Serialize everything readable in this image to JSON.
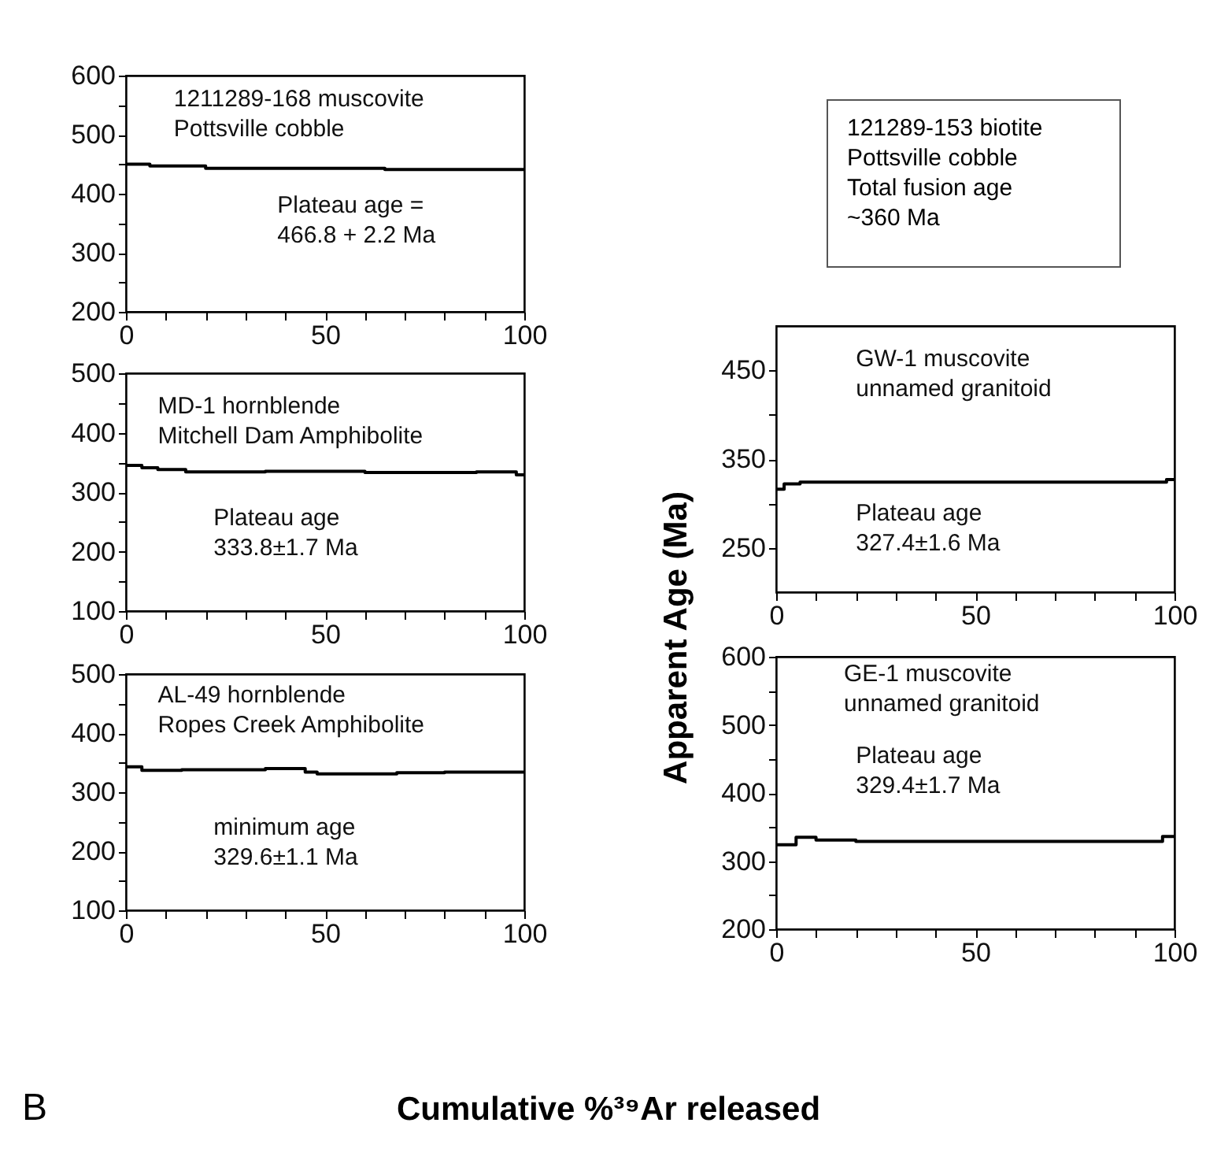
{
  "chart_data": [
    {
      "type": "step",
      "x": [
        0,
        6,
        20,
        65,
        100
      ],
      "series": [
        {
          "color": "#000000",
          "values": [
            450,
            447,
            443,
            441,
            441
          ]
        }
      ],
      "xlim": [
        0,
        100
      ],
      "ylim": [
        200,
        600
      ],
      "xticks": [
        0,
        {
          "value": 10,
          "label": null
        },
        {
          "value": 20,
          "label": null
        },
        {
          "value": 30,
          "label": null
        },
        {
          "value": 40,
          "label": null
        },
        50,
        {
          "value": 60,
          "label": null
        },
        {
          "value": 70,
          "label": null
        },
        {
          "value": 80,
          "label": null
        },
        {
          "value": 90,
          "label": null
        },
        100
      ],
      "yticks": [
        200,
        {
          "value": 250,
          "label": null
        },
        300,
        {
          "value": 350,
          "label": null
        },
        400,
        {
          "value": 450,
          "label": null
        },
        500,
        {
          "value": 550,
          "label": null
        },
        600
      ],
      "annotations": [
        "1211289-168 muscovite\nPottsville cobble",
        "Plateau age =\n466.8 + 2.2 Ma"
      ]
    },
    {
      "type": "step",
      "x": [
        0,
        4,
        8,
        15,
        35,
        60,
        88,
        98,
        100
      ],
      "series": [
        {
          "color": "#000000",
          "values": [
            345,
            341,
            338,
            334,
            335,
            333,
            334,
            329,
            329
          ]
        }
      ],
      "xlim": [
        0,
        100
      ],
      "ylim": [
        100,
        500
      ],
      "xticks": [
        0,
        {
          "value": 10,
          "label": null
        },
        {
          "value": 20,
          "label": null
        },
        {
          "value": 30,
          "label": null
        },
        {
          "value": 40,
          "label": null
        },
        50,
        {
          "value": 60,
          "label": null
        },
        {
          "value": 70,
          "label": null
        },
        {
          "value": 80,
          "label": null
        },
        {
          "value": 90,
          "label": null
        },
        100
      ],
      "yticks": [
        100,
        {
          "value": 150,
          "label": null
        },
        200,
        {
          "value": 250,
          "label": null
        },
        300,
        {
          "value": 350,
          "label": null
        },
        400,
        {
          "value": 450,
          "label": null
        },
        500
      ],
      "annotations": [
        "MD-1 hornblende\nMitchell Dam Amphibolite",
        "Plateau age\n333.8±1.7 Ma"
      ]
    },
    {
      "type": "step",
      "x": [
        0,
        4,
        14,
        35,
        45,
        48,
        68,
        80,
        100
      ],
      "series": [
        {
          "color": "#000000",
          "values": [
            343,
            337,
            338,
            340,
            334,
            331,
            333,
            334,
            334
          ]
        }
      ],
      "xlim": [
        0,
        100
      ],
      "ylim": [
        100,
        500
      ],
      "xticks": [
        0,
        {
          "value": 10,
          "label": null
        },
        {
          "value": 20,
          "label": null
        },
        {
          "value": 30,
          "label": null
        },
        {
          "value": 40,
          "label": null
        },
        50,
        {
          "value": 60,
          "label": null
        },
        {
          "value": 70,
          "label": null
        },
        {
          "value": 80,
          "label": null
        },
        {
          "value": 90,
          "label": null
        },
        100
      ],
      "yticks": [
        100,
        {
          "value": 150,
          "label": null
        },
        200,
        {
          "value": 250,
          "label": null
        },
        300,
        {
          "value": 350,
          "label": null
        },
        400,
        {
          "value": 450,
          "label": null
        },
        500
      ],
      "annotations": [
        "AL-49 hornblende\nRopes Creek Amphibolite",
        "minimum age\n329.6±1.1 Ma"
      ]
    },
    {
      "type": "other",
      "annotations": [
        "121289-153 biotite\nPottsville cobble\nTotal fusion age\n~360 Ma",
        "B"
      ],
      "xlabel": "Cumulative %³⁹Ar released",
      "ylabel": "Apparent Age (Ma)"
    },
    {
      "type": "step",
      "x": [
        0,
        2,
        6,
        98,
        100
      ],
      "series": [
        {
          "color": "#000000",
          "values": [
            316,
            322,
            324,
            327,
            327
          ]
        }
      ],
      "xlim": [
        0,
        100
      ],
      "ylim": [
        200,
        500
      ],
      "xticks": [
        0,
        {
          "value": 10,
          "label": null
        },
        {
          "value": 20,
          "label": null
        },
        {
          "value": 30,
          "label": null
        },
        {
          "value": 40,
          "label": null
        },
        50,
        {
          "value": 60,
          "label": null
        },
        {
          "value": 70,
          "label": null
        },
        {
          "value": 80,
          "label": null
        },
        {
          "value": 90,
          "label": null
        },
        100
      ],
      "yticks": [
        250,
        {
          "value": 300,
          "label": null
        },
        350,
        {
          "value": 400,
          "label": null
        },
        450
      ],
      "annotations": [
        "GW-1 muscovite\nunnamed granitoid",
        "Plateau age\n327.4±1.6 Ma"
      ]
    },
    {
      "type": "step",
      "x": [
        0,
        5,
        10,
        20,
        97,
        100
      ],
      "series": [
        {
          "color": "#000000",
          "values": [
            324,
            335,
            331,
            329,
            336,
            336
          ]
        }
      ],
      "xlim": [
        0,
        100
      ],
      "ylim": [
        200,
        600
      ],
      "xticks": [
        0,
        {
          "value": 10,
          "label": null
        },
        {
          "value": 20,
          "label": null
        },
        {
          "value": 30,
          "label": null
        },
        {
          "value": 40,
          "label": null
        },
        50,
        {
          "value": 60,
          "label": null
        },
        {
          "value": 70,
          "label": null
        },
        {
          "value": 80,
          "label": null
        },
        {
          "value": 90,
          "label": null
        },
        100
      ],
      "yticks": [
        200,
        {
          "value": 250,
          "label": null
        },
        300,
        {
          "value": 350,
          "label": null
        },
        400,
        {
          "value": 450,
          "label": null
        },
        500,
        {
          "value": 550,
          "label": null
        },
        600
      ],
      "annotations": [
        "GE-1 muscovite\nunnamed granitoid",
        "Plateau age\n329.4±1.7 Ma"
      ]
    }
  ]
}
